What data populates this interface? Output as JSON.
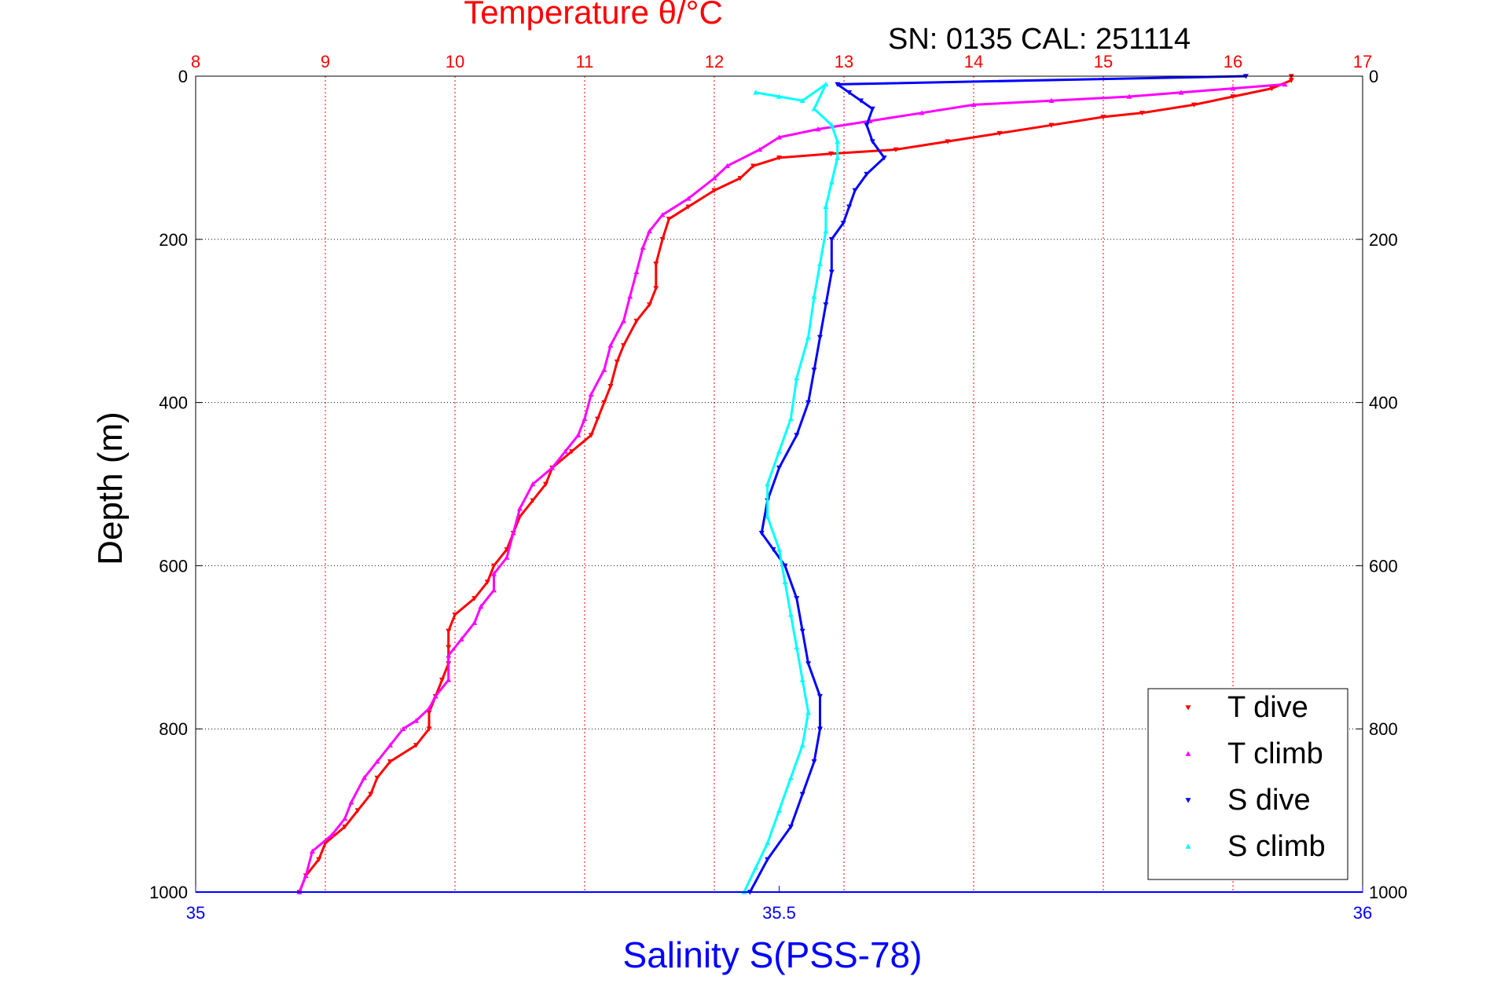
{
  "chart_data": {
    "type": "scatter",
    "title": "Temperature θ/°C",
    "subtitle": "SN: 0135  CAL: 251114",
    "xlabel": "Salinity S(PSS-78)",
    "ylabel": "Depth (m)",
    "temperature_axis": {
      "range": [
        8,
        17
      ],
      "ticks": [
        "8",
        "9",
        "10",
        "11",
        "12",
        "13",
        "14",
        "15",
        "16",
        "17"
      ],
      "color": "#ff0000"
    },
    "salinity_axis": {
      "range": [
        35,
        36
      ],
      "ticks": [
        "35",
        "35.5",
        "36"
      ],
      "color": "#0000ff"
    },
    "depth_axis": {
      "range": [
        0,
        1000
      ],
      "reversed": true,
      "ticks": [
        "0",
        "200",
        "400",
        "600",
        "800",
        "1000"
      ]
    },
    "grid": true,
    "legend_position": "bottom-right",
    "series": [
      {
        "name": "T dive",
        "axis": "temperature",
        "color": "#ff0000",
        "marker": "triangle-down",
        "points": [
          [
            16.45,
            0
          ],
          [
            16.45,
            5
          ],
          [
            16.3,
            15
          ],
          [
            16.0,
            25
          ],
          [
            15.7,
            35
          ],
          [
            15.3,
            45
          ],
          [
            15.0,
            50
          ],
          [
            14.6,
            60
          ],
          [
            14.2,
            70
          ],
          [
            13.8,
            80
          ],
          [
            13.4,
            90
          ],
          [
            12.9,
            95
          ],
          [
            12.5,
            100
          ],
          [
            12.3,
            110
          ],
          [
            12.2,
            125
          ],
          [
            12.0,
            140
          ],
          [
            11.8,
            160
          ],
          [
            11.65,
            175
          ],
          [
            11.6,
            200
          ],
          [
            11.55,
            230
          ],
          [
            11.55,
            260
          ],
          [
            11.5,
            280
          ],
          [
            11.4,
            300
          ],
          [
            11.3,
            330
          ],
          [
            11.25,
            350
          ],
          [
            11.2,
            380
          ],
          [
            11.15,
            400
          ],
          [
            11.1,
            420
          ],
          [
            11.05,
            440
          ],
          [
            10.9,
            460
          ],
          [
            10.75,
            480
          ],
          [
            10.7,
            500
          ],
          [
            10.6,
            520
          ],
          [
            10.5,
            540
          ],
          [
            10.45,
            560
          ],
          [
            10.4,
            580
          ],
          [
            10.3,
            600
          ],
          [
            10.25,
            620
          ],
          [
            10.15,
            640
          ],
          [
            10.0,
            660
          ],
          [
            9.95,
            680
          ],
          [
            9.95,
            700
          ],
          [
            9.95,
            720
          ],
          [
            9.9,
            740
          ],
          [
            9.85,
            760
          ],
          [
            9.8,
            780
          ],
          [
            9.8,
            800
          ],
          [
            9.7,
            820
          ],
          [
            9.5,
            840
          ],
          [
            9.4,
            860
          ],
          [
            9.35,
            880
          ],
          [
            9.25,
            900
          ],
          [
            9.15,
            920
          ],
          [
            9.0,
            940
          ],
          [
            8.95,
            960
          ],
          [
            8.85,
            980
          ],
          [
            8.8,
            1000
          ]
        ]
      },
      {
        "name": "T climb",
        "axis": "temperature",
        "color": "#ff00ff",
        "marker": "triangle-up",
        "points": [
          [
            16.4,
            10
          ],
          [
            16.0,
            15
          ],
          [
            15.6,
            20
          ],
          [
            15.2,
            25
          ],
          [
            14.6,
            30
          ],
          [
            14.0,
            35
          ],
          [
            13.6,
            45
          ],
          [
            13.2,
            55
          ],
          [
            12.8,
            65
          ],
          [
            12.5,
            75
          ],
          [
            12.35,
            90
          ],
          [
            12.1,
            110
          ],
          [
            12.0,
            125
          ],
          [
            11.8,
            150
          ],
          [
            11.6,
            170
          ],
          [
            11.5,
            190
          ],
          [
            11.45,
            210
          ],
          [
            11.4,
            240
          ],
          [
            11.35,
            270
          ],
          [
            11.3,
            300
          ],
          [
            11.2,
            330
          ],
          [
            11.15,
            360
          ],
          [
            11.05,
            390
          ],
          [
            11.0,
            420
          ],
          [
            10.95,
            440
          ],
          [
            10.85,
            460
          ],
          [
            10.75,
            480
          ],
          [
            10.6,
            500
          ],
          [
            10.5,
            530
          ],
          [
            10.45,
            560
          ],
          [
            10.4,
            590
          ],
          [
            10.3,
            610
          ],
          [
            10.3,
            630
          ],
          [
            10.2,
            650
          ],
          [
            10.15,
            670
          ],
          [
            10.05,
            690
          ],
          [
            9.95,
            710
          ],
          [
            9.95,
            740
          ],
          [
            9.85,
            760
          ],
          [
            9.8,
            775
          ],
          [
            9.7,
            790
          ],
          [
            9.6,
            800
          ],
          [
            9.5,
            820
          ],
          [
            9.4,
            840
          ],
          [
            9.3,
            860
          ],
          [
            9.2,
            890
          ],
          [
            9.15,
            910
          ],
          [
            9.05,
            930
          ],
          [
            8.9,
            950
          ],
          [
            8.85,
            980
          ],
          [
            8.8,
            1000
          ]
        ]
      },
      {
        "name": "S dive",
        "axis": "salinity",
        "color": "#0000ff",
        "marker": "triangle-down",
        "points": [
          [
            35.9,
            0
          ],
          [
            35.55,
            10
          ],
          [
            35.56,
            20
          ],
          [
            35.57,
            30
          ],
          [
            35.58,
            40
          ],
          [
            35.575,
            60
          ],
          [
            35.58,
            80
          ],
          [
            35.59,
            100
          ],
          [
            35.575,
            120
          ],
          [
            35.565,
            140
          ],
          [
            35.56,
            160
          ],
          [
            35.555,
            180
          ],
          [
            35.545,
            200
          ],
          [
            35.545,
            240
          ],
          [
            35.54,
            280
          ],
          [
            35.535,
            320
          ],
          [
            35.53,
            360
          ],
          [
            35.525,
            400
          ],
          [
            35.515,
            440
          ],
          [
            35.5,
            480
          ],
          [
            35.49,
            520
          ],
          [
            35.485,
            560
          ],
          [
            35.495,
            580
          ],
          [
            35.505,
            600
          ],
          [
            35.515,
            640
          ],
          [
            35.52,
            680
          ],
          [
            35.525,
            720
          ],
          [
            35.535,
            760
          ],
          [
            35.535,
            800
          ],
          [
            35.53,
            840
          ],
          [
            35.52,
            880
          ],
          [
            35.51,
            920
          ],
          [
            35.49,
            960
          ],
          [
            35.475,
            1000
          ]
        ]
      },
      {
        "name": "S climb",
        "axis": "salinity",
        "color": "#00ffff",
        "marker": "triangle-up",
        "points": [
          [
            35.48,
            20
          ],
          [
            35.5,
            25
          ],
          [
            35.52,
            30
          ],
          [
            35.54,
            10
          ],
          [
            35.53,
            40
          ],
          [
            35.545,
            60
          ],
          [
            35.55,
            80
          ],
          [
            35.55,
            100
          ],
          [
            35.545,
            130
          ],
          [
            35.54,
            160
          ],
          [
            35.54,
            190
          ],
          [
            35.535,
            230
          ],
          [
            35.53,
            270
          ],
          [
            35.525,
            320
          ],
          [
            35.515,
            370
          ],
          [
            35.51,
            420
          ],
          [
            35.5,
            460
          ],
          [
            35.49,
            500
          ],
          [
            35.49,
            540
          ],
          [
            35.5,
            580
          ],
          [
            35.505,
            620
          ],
          [
            35.51,
            660
          ],
          [
            35.515,
            700
          ],
          [
            35.52,
            740
          ],
          [
            35.525,
            780
          ],
          [
            35.52,
            820
          ],
          [
            35.51,
            860
          ],
          [
            35.5,
            900
          ],
          [
            35.49,
            940
          ],
          [
            35.48,
            970
          ],
          [
            35.47,
            1000
          ]
        ]
      }
    ]
  }
}
